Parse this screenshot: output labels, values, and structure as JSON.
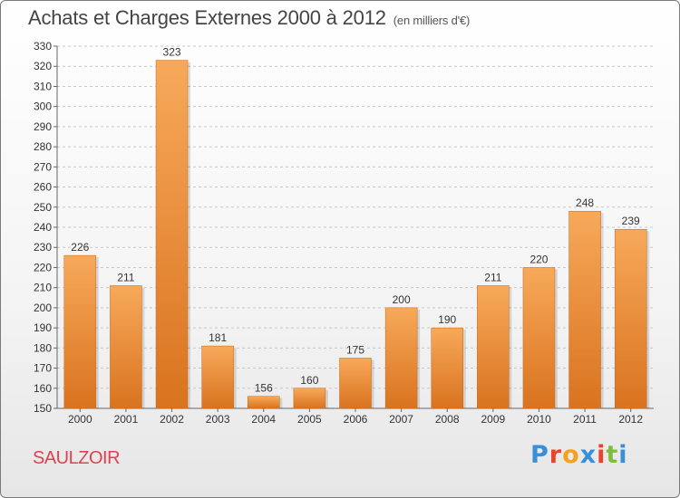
{
  "header": {
    "title": "Achats et Charges Externes 2000 à 2012",
    "unit": "(en milliers d'€)"
  },
  "footer": {
    "commune": "SAULZOIR",
    "logo_text": "Proxiti",
    "logo_colors": [
      "#3a8fd6",
      "#e8452c",
      "#f2a21b",
      "#3a8fd6",
      "#e8452c",
      "#7cbf3a",
      "#3a8fd6"
    ]
  },
  "colors": {
    "bar_light": "#f7a95a",
    "bar_dark": "#d9731f",
    "grid": "#c8c8c8",
    "axis": "#666666"
  },
  "chart_data": {
    "type": "bar",
    "categories": [
      "2000",
      "2001",
      "2002",
      "2003",
      "2004",
      "2005",
      "2006",
      "2007",
      "2008",
      "2009",
      "2010",
      "2011",
      "2012"
    ],
    "values": [
      226,
      211,
      323,
      181,
      156,
      160,
      175,
      200,
      190,
      211,
      220,
      248,
      239
    ],
    "title": "Achats et Charges Externes 2000 à 2012",
    "xlabel": "",
    "ylabel": "",
    "ylim": [
      150,
      330
    ],
    "y_ticks": [
      150,
      160,
      170,
      180,
      190,
      200,
      210,
      220,
      230,
      240,
      250,
      260,
      270,
      280,
      290,
      300,
      310,
      320,
      330
    ],
    "grid": true,
    "value_labels": true
  }
}
